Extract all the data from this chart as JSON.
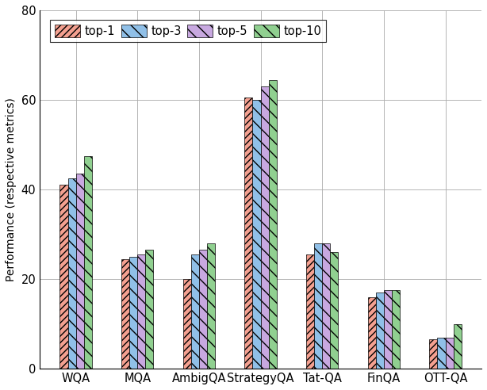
{
  "categories": [
    "WQA",
    "MQA",
    "AmbigQA",
    "StrategyQA",
    "Tat-QA",
    "FinQA",
    "OTT-QA"
  ],
  "series": {
    "top-1": [
      41.0,
      24.5,
      20.0,
      60.5,
      25.5,
      16.0,
      6.5
    ],
    "top-3": [
      42.5,
      25.0,
      25.5,
      60.0,
      28.0,
      17.0,
      7.0
    ],
    "top-5": [
      43.5,
      25.5,
      26.5,
      63.0,
      28.0,
      17.5,
      7.0
    ],
    "top-10": [
      47.5,
      26.5,
      28.0,
      64.5,
      26.0,
      17.5,
      10.0
    ]
  },
  "colors": {
    "top-1": "#F4A090",
    "top-3": "#90C0E8",
    "top-5": "#C8A8E0",
    "top-10": "#90D090"
  },
  "hatch_top1": "////",
  "hatch_others": "\\\\",
  "ylabel": "Performance (respective metrics)",
  "ylim": [
    0,
    80
  ],
  "yticks": [
    0,
    20,
    40,
    60,
    80
  ],
  "legend_labels": [
    "top-1",
    "top-3",
    "top-5",
    "top-10"
  ],
  "bar_width": 0.13,
  "grid": true,
  "figsize": [
    6.14,
    4.92
  ],
  "dpi": 100
}
